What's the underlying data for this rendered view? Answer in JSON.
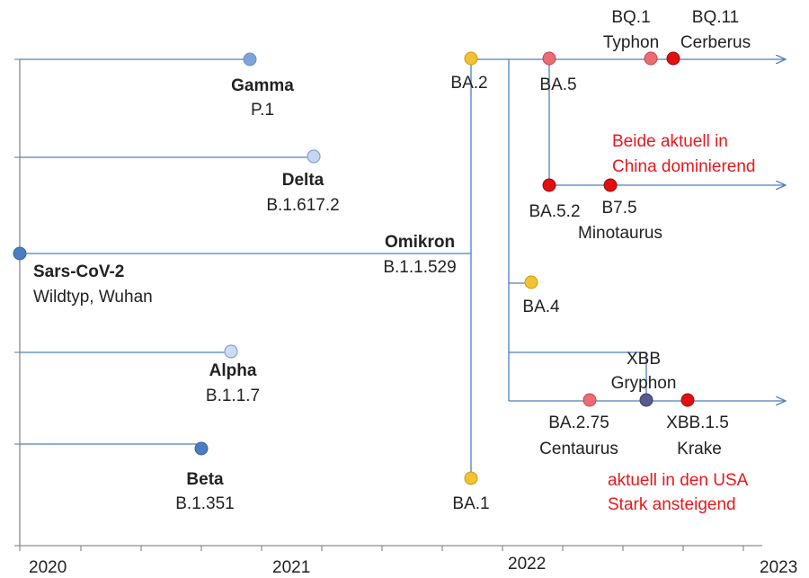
{
  "colors": {
    "line": "#4f7fc0",
    "axis": "#8c8c8c",
    "text": "#222222",
    "note": "#e8181c",
    "root": "#4a7cc0",
    "gamma": "#7fa3d6",
    "delta": "#c5d6ee",
    "alpha": "#cddcf2",
    "beta": "#4a7cc0",
    "omicron_yellow": "#f1c232",
    "pink": "#ea6d75",
    "red": "#e01010",
    "xbb": "#5a5a8e"
  },
  "axis": {
    "years": [
      "2020",
      "2021",
      "2022",
      "2023"
    ]
  },
  "variants": {
    "root": {
      "name": "Sars-CoV-2",
      "sub": "Wildtyp, Wuhan"
    },
    "gamma": {
      "name": "Gamma",
      "sub": "P.1"
    },
    "delta": {
      "name": "Delta",
      "sub": "B.1.617.2"
    },
    "alpha": {
      "name": "Alpha",
      "sub": "B.1.1.7"
    },
    "beta": {
      "name": "Beta",
      "sub": "B.1.351"
    },
    "omicron": {
      "name": "Omikron",
      "sub": "B.1.1.529"
    },
    "ba1": {
      "name": "BA.1"
    },
    "ba2": {
      "name": "BA.2"
    },
    "ba4": {
      "name": "BA.4"
    },
    "ba5": {
      "name": "BA.5"
    },
    "ba52": {
      "name": "BA.5.2"
    },
    "b75": {
      "name": "B7.5",
      "sub": "Minotaurus"
    },
    "bq1": {
      "name": "BQ.1",
      "sub": "Typhon"
    },
    "bq11": {
      "name": "BQ.11",
      "sub": "Cerberus"
    },
    "xbb": {
      "name": "XBB",
      "sub": "Gryphon"
    },
    "ba275": {
      "name": "BA.2.75",
      "sub": "Centaurus"
    },
    "xbb15": {
      "name": "XBB.1.5",
      "sub": "Krake"
    }
  },
  "notes": {
    "china": [
      "Beide aktuell in",
      "China dominierend"
    ],
    "usa": [
      "aktuell in den USA",
      "Stark ansteigend"
    ]
  }
}
